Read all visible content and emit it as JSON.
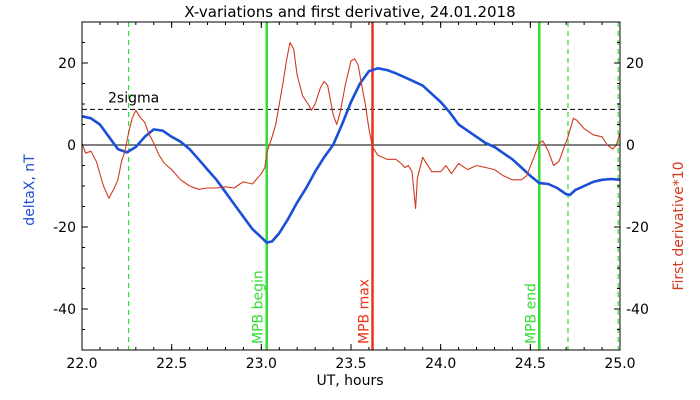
{
  "chart_data": {
    "type": "line",
    "title": "X-variations and first derivative, 24.01.2018",
    "xlabel": "UT, hours",
    "ylabel_left": "deltaX, nT",
    "ylabel_right": "First derivative*10",
    "xlim": [
      22.0,
      25.0
    ],
    "ylim": [
      -50,
      30
    ],
    "x_ticks": [
      "22.0",
      "22.5",
      "23.0",
      "23.5",
      "24.0",
      "24.5",
      "25.0"
    ],
    "y_ticks": [
      "-40",
      "-20",
      "0",
      "20"
    ],
    "grid": false,
    "colors": {
      "deltaX": "#1a4fd8",
      "derivative": "#d23a1e",
      "sigma": "#000000",
      "mpb_boundary": "#33dd33",
      "mpb_max": "#e8331a"
    },
    "threshold": {
      "label": "2sigma",
      "y": 8.7
    },
    "vertical_markers": [
      {
        "x": 23.03,
        "label": "MPB begin",
        "style": "solid",
        "color": "#33dd33"
      },
      {
        "x": 23.62,
        "label": "MPB max",
        "style": "solid",
        "color": "#e8331a"
      },
      {
        "x": 24.55,
        "label": "MPB end",
        "style": "solid",
        "color": "#33dd33"
      },
      {
        "x": 22.26,
        "label": "",
        "style": "dashed",
        "color": "#33dd33"
      },
      {
        "x": 24.71,
        "label": "",
        "style": "dashed",
        "color": "#33dd33"
      },
      {
        "x": 24.99,
        "label": "",
        "style": "dashed",
        "color": "#33dd33"
      }
    ],
    "series": [
      {
        "axis": "left",
        "color": "#1a4fd8",
        "points": [
          [
            22.0,
            7.0
          ],
          [
            22.05,
            6.5
          ],
          [
            22.1,
            5.0
          ],
          [
            22.15,
            2.0
          ],
          [
            22.2,
            -1.0
          ],
          [
            22.25,
            -1.8
          ],
          [
            22.3,
            -0.5
          ],
          [
            22.35,
            2.0
          ],
          [
            22.4,
            3.8
          ],
          [
            22.45,
            3.5
          ],
          [
            22.5,
            2.0
          ],
          [
            22.55,
            0.8
          ],
          [
            22.6,
            -1.0
          ],
          [
            22.65,
            -3.5
          ],
          [
            22.7,
            -6.0
          ],
          [
            22.75,
            -8.5
          ],
          [
            22.8,
            -11.5
          ],
          [
            22.85,
            -14.5
          ],
          [
            22.9,
            -17.5
          ],
          [
            22.95,
            -20.5
          ],
          [
            23.0,
            -22.5
          ],
          [
            23.03,
            -23.8
          ],
          [
            23.06,
            -23.5
          ],
          [
            23.1,
            -21.5
          ],
          [
            23.15,
            -18.0
          ],
          [
            23.2,
            -14.0
          ],
          [
            23.25,
            -10.5
          ],
          [
            23.3,
            -6.5
          ],
          [
            23.35,
            -3.0
          ],
          [
            23.4,
            0.0
          ],
          [
            23.45,
            5.0
          ],
          [
            23.5,
            10.5
          ],
          [
            23.55,
            15.0
          ],
          [
            23.6,
            18.0
          ],
          [
            23.65,
            18.7
          ],
          [
            23.7,
            18.3
          ],
          [
            23.75,
            17.5
          ],
          [
            23.8,
            16.5
          ],
          [
            23.85,
            15.5
          ],
          [
            23.9,
            14.5
          ],
          [
            23.95,
            12.5
          ],
          [
            24.0,
            10.5
          ],
          [
            24.05,
            8.0
          ],
          [
            24.1,
            5.0
          ],
          [
            24.15,
            3.5
          ],
          [
            24.2,
            2.0
          ],
          [
            24.25,
            0.5
          ],
          [
            24.3,
            -0.5
          ],
          [
            24.35,
            -2.0
          ],
          [
            24.4,
            -3.5
          ],
          [
            24.45,
            -5.5
          ],
          [
            24.5,
            -7.5
          ],
          [
            24.55,
            -9.3
          ],
          [
            24.6,
            -9.5
          ],
          [
            24.65,
            -10.5
          ],
          [
            24.7,
            -12.0
          ],
          [
            24.72,
            -12.2
          ],
          [
            24.75,
            -11.0
          ],
          [
            24.8,
            -10.0
          ],
          [
            24.85,
            -9.0
          ],
          [
            24.9,
            -8.5
          ],
          [
            24.95,
            -8.3
          ],
          [
            25.0,
            -8.5
          ]
        ]
      },
      {
        "axis": "right",
        "color": "#d23a1e",
        "points": [
          [
            22.0,
            0.5
          ],
          [
            22.02,
            -2.0
          ],
          [
            22.05,
            -1.5
          ],
          [
            22.08,
            -4.0
          ],
          [
            22.12,
            -10.0
          ],
          [
            22.15,
            -13.0
          ],
          [
            22.18,
            -10.5
          ],
          [
            22.2,
            -8.5
          ],
          [
            22.22,
            -4.0
          ],
          [
            22.24,
            -1.5
          ],
          [
            22.26,
            3.0
          ],
          [
            22.28,
            6.5
          ],
          [
            22.3,
            8.5
          ],
          [
            22.32,
            7.0
          ],
          [
            22.35,
            5.5
          ],
          [
            22.37,
            3.0
          ],
          [
            22.4,
            0.5
          ],
          [
            22.43,
            -2.5
          ],
          [
            22.46,
            -4.5
          ],
          [
            22.5,
            -6.0
          ],
          [
            22.55,
            -8.5
          ],
          [
            22.6,
            -10.0
          ],
          [
            22.65,
            -10.8
          ],
          [
            22.7,
            -10.5
          ],
          [
            22.75,
            -10.5
          ],
          [
            22.8,
            -10.2
          ],
          [
            22.85,
            -10.5
          ],
          [
            22.88,
            -9.5
          ],
          [
            22.9,
            -9.0
          ],
          [
            22.95,
            -9.5
          ],
          [
            23.0,
            -7.0
          ],
          [
            23.02,
            -5.5
          ],
          [
            23.03,
            -2.0
          ],
          [
            23.06,
            2.0
          ],
          [
            23.08,
            5.0
          ],
          [
            23.1,
            10.0
          ],
          [
            23.12,
            15.0
          ],
          [
            23.14,
            20.5
          ],
          [
            23.16,
            25.0
          ],
          [
            23.18,
            23.5
          ],
          [
            23.2,
            17.0
          ],
          [
            23.23,
            12.0
          ],
          [
            23.26,
            10.0
          ],
          [
            23.28,
            8.5
          ],
          [
            23.3,
            10.0
          ],
          [
            23.33,
            14.0
          ],
          [
            23.35,
            15.5
          ],
          [
            23.37,
            14.5
          ],
          [
            23.4,
            7.5
          ],
          [
            23.42,
            5.0
          ],
          [
            23.44,
            8.0
          ],
          [
            23.47,
            15.0
          ],
          [
            23.5,
            20.5
          ],
          [
            23.52,
            21.0
          ],
          [
            23.54,
            19.5
          ],
          [
            23.56,
            14.5
          ],
          [
            23.58,
            10.0
          ],
          [
            23.6,
            4.0
          ],
          [
            23.62,
            -0.5
          ],
          [
            23.65,
            -2.5
          ],
          [
            23.7,
            -3.5
          ],
          [
            23.75,
            -3.5
          ],
          [
            23.78,
            -4.5
          ],
          [
            23.8,
            -5.5
          ],
          [
            23.82,
            -5.0
          ],
          [
            23.84,
            -6.5
          ],
          [
            23.86,
            -15.5
          ],
          [
            23.87,
            -8.0
          ],
          [
            23.9,
            -3.0
          ],
          [
            23.95,
            -6.5
          ],
          [
            24.0,
            -6.5
          ],
          [
            24.03,
            -5.0
          ],
          [
            24.06,
            -7.0
          ],
          [
            24.1,
            -4.5
          ],
          [
            24.15,
            -6.0
          ],
          [
            24.2,
            -5.0
          ],
          [
            24.25,
            -5.5
          ],
          [
            24.3,
            -6.0
          ],
          [
            24.35,
            -7.5
          ],
          [
            24.4,
            -8.5
          ],
          [
            24.45,
            -8.5
          ],
          [
            24.48,
            -7.5
          ],
          [
            24.52,
            -3.0
          ],
          [
            24.55,
            0.5
          ],
          [
            24.57,
            1.0
          ],
          [
            24.6,
            -1.5
          ],
          [
            24.63,
            -5.0
          ],
          [
            24.66,
            -4.0
          ],
          [
            24.68,
            -1.5
          ],
          [
            24.71,
            2.0
          ],
          [
            24.74,
            6.5
          ],
          [
            24.76,
            6.0
          ],
          [
            24.8,
            4.0
          ],
          [
            24.85,
            2.5
          ],
          [
            24.9,
            2.0
          ],
          [
            24.93,
            0.0
          ],
          [
            24.96,
            -1.0
          ],
          [
            24.98,
            0.0
          ],
          [
            25.0,
            3.0
          ]
        ]
      }
    ]
  }
}
